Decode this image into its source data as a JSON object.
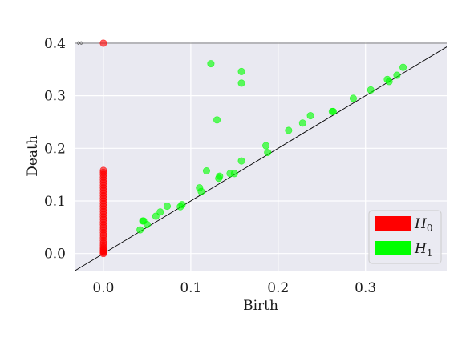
{
  "chart_data": {
    "type": "scatter",
    "title": "",
    "xlabel": "Birth",
    "ylabel": "Death",
    "xlim": [
      -0.033,
      0.393
    ],
    "ylim": [
      -0.034,
      0.403
    ],
    "xticks": [
      0.0,
      0.1,
      0.2,
      0.3
    ],
    "xtick_labels": [
      "0.0",
      "0.1",
      "0.2",
      "0.3"
    ],
    "yticks": [
      0.0,
      0.1,
      0.2,
      0.3,
      0.4
    ],
    "ytick_labels": [
      "0.0",
      "0.1",
      "0.2",
      "0.3",
      "0.4"
    ],
    "grid": true,
    "background": "#e9e9f1",
    "gridline_color": "#ffffff",
    "diagonal": true,
    "infinity_line": {
      "y": 0.4,
      "label": "∞"
    },
    "legend_location": "lower right",
    "series": [
      {
        "name": "H0",
        "name_base": "H",
        "name_sub": "0",
        "color": "#ff0000",
        "x": [
          0.0,
          0.0,
          0.0,
          0.0,
          0.0,
          0.0,
          0.0,
          0.0,
          0.0,
          0.0,
          0.0,
          0.0,
          0.0,
          0.0,
          0.0,
          0.0,
          0.0,
          0.0,
          0.0,
          0.0,
          0.0,
          0.0,
          0.0,
          0.0,
          0.0,
          0.0,
          0.0,
          0.0,
          0.0,
          0.0,
          0.0,
          0.0,
          0.0,
          0.0,
          0.0,
          0.0,
          0.0
        ],
        "y": [
          0.4,
          0.158,
          0.154,
          0.15,
          0.145,
          0.14,
          0.135,
          0.13,
          0.125,
          0.12,
          0.115,
          0.11,
          0.105,
          0.1,
          0.095,
          0.09,
          0.085,
          0.08,
          0.075,
          0.07,
          0.065,
          0.06,
          0.055,
          0.05,
          0.045,
          0.04,
          0.035,
          0.03,
          0.025,
          0.02,
          0.016,
          0.012,
          0.009,
          0.006,
          0.004,
          0.002,
          0.0
        ]
      },
      {
        "name": "H1",
        "name_base": "H",
        "name_sub": "1",
        "color": "#00ff00",
        "x": [
          0.123,
          0.158,
          0.158,
          0.13,
          0.118,
          0.132,
          0.133,
          0.145,
          0.15,
          0.158,
          0.186,
          0.188,
          0.11,
          0.112,
          0.09,
          0.088,
          0.073,
          0.065,
          0.06,
          0.05,
          0.046,
          0.045,
          0.042,
          0.212,
          0.228,
          0.237,
          0.263,
          0.262,
          0.286,
          0.306,
          0.325,
          0.327,
          0.336,
          0.343
        ],
        "y": [
          0.361,
          0.346,
          0.324,
          0.254,
          0.157,
          0.143,
          0.147,
          0.152,
          0.152,
          0.176,
          0.205,
          0.192,
          0.125,
          0.118,
          0.093,
          0.089,
          0.09,
          0.079,
          0.071,
          0.055,
          0.062,
          0.062,
          0.045,
          0.234,
          0.248,
          0.262,
          0.27,
          0.27,
          0.295,
          0.311,
          0.331,
          0.327,
          0.339,
          0.354
        ]
      }
    ]
  }
}
